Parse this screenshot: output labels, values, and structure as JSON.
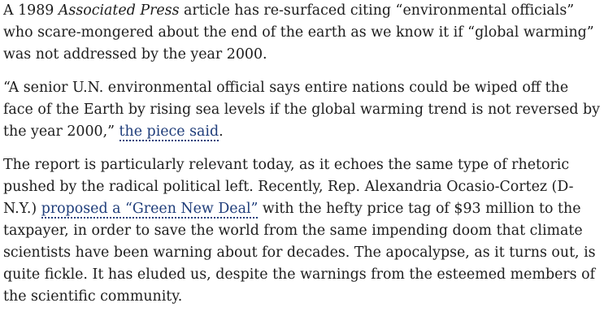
{
  "article": {
    "p1": {
      "pre": "A 1989 ",
      "em": "Associated Press",
      "post": " article has re-surfaced citing “environmental officials” who scare-mongered about the end of the earth as we know it if “global warming” was not addressed by the year 2000."
    },
    "p2": {
      "pre": "“A senior U.N. environmental official says entire nations could be wiped off the face of the Earth by rising sea levels if the global warming trend is not reversed by the year 2000,” ",
      "link": "the piece said",
      "post": "."
    },
    "p3": {
      "pre": "The report is particularly relevant today, as it echoes the same type of rhetoric pushed by the radical political left. Recently, Rep. Alexandria Ocasio-Cortez (D-N.Y.) ",
      "link": "proposed a “Green New Deal”",
      "post": " with the hefty price tag of $93 million to the taxpayer, in order to save the world from the same impending doom that climate scientists have been warning about for decades. The apocalypse, as it turns out, is quite fickle. It has eluded us, despite the warnings from the esteemed members of the scientific community."
    }
  }
}
